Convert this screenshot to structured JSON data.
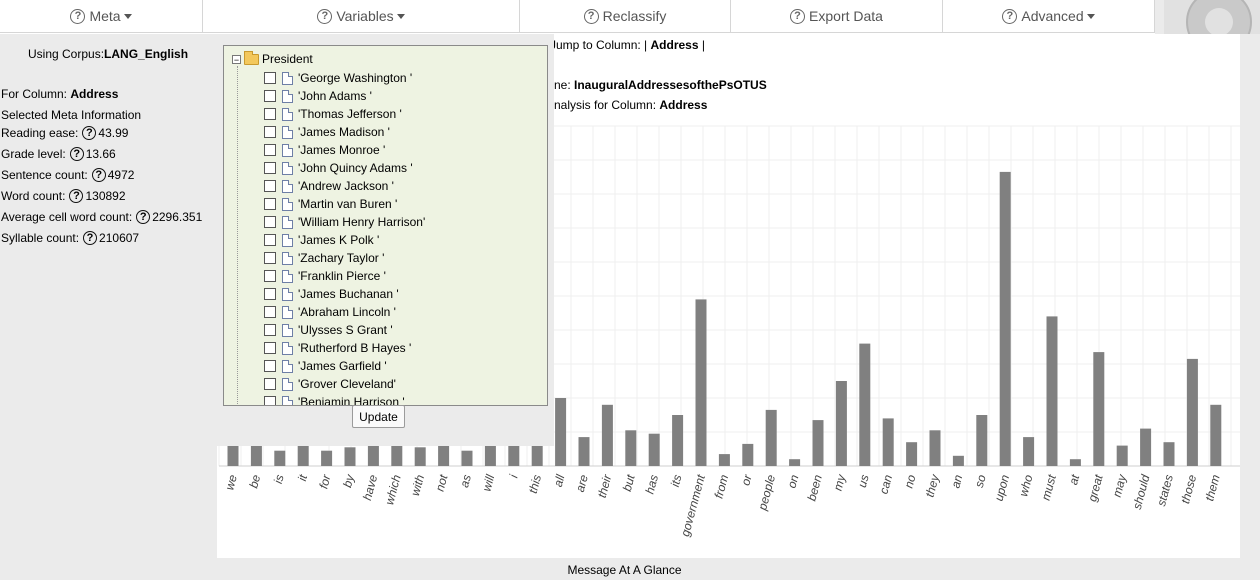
{
  "menu": {
    "items": [
      {
        "label": "Meta",
        "caret": true
      },
      {
        "label": "Variables",
        "caret": true
      },
      {
        "label": "Reclassify",
        "caret": false
      },
      {
        "label": "Export Data",
        "caret": false
      },
      {
        "label": "Advanced",
        "caret": true
      }
    ],
    "icon": "question-circle-icon",
    "logo_icon": "gear-icon"
  },
  "meta": {
    "corpus_label": "Using Corpus:",
    "corpus_value": "LANG_English",
    "column_label": "For Column:",
    "column_value": "Address",
    "selected_meta": "Selected Meta Information",
    "stats": [
      {
        "label": "Reading ease:",
        "value": "43.99"
      },
      {
        "label": "Grade level:",
        "value": "13.66"
      },
      {
        "label": "Sentence count:",
        "value": "4972"
      },
      {
        "label": "Word count:",
        "value": "130892"
      },
      {
        "label": "Average cell word count:",
        "value": "2296.351"
      },
      {
        "label": "Syllable count:",
        "value": "210607"
      }
    ]
  },
  "info": {
    "jump_prefix": "Jump to Column: | ",
    "jump_column": "Address",
    "jump_suffix": " |",
    "name_prefix": "ne: ",
    "name_value": "InauguralAddressesofthePsOTUS",
    "analysis_prefix": "nalysis for Column: ",
    "analysis_value": "Address"
  },
  "tree": {
    "root": "President",
    "items": [
      "'George Washington '",
      "'John Adams '",
      "'Thomas Jefferson '",
      "'James Madison '",
      "'James Monroe '",
      "'John Quincy Adams '",
      "'Andrew Jackson '",
      "'Martin van Buren '",
      "'William Henry Harrison'",
      "'James K Polk '",
      "'Zachary Taylor '",
      "'Franklin Pierce '",
      "'James Buchanan '",
      "'Abraham Lincoln '",
      "'Ulysses S Grant '",
      "'Rutherford B Hayes '",
      "'James Garfield '",
      "'Grover Cleveland'",
      "'Benjamin Harrison '"
    ],
    "update_label": "Update"
  },
  "chart_data": {
    "type": "bar",
    "categories": [
      "we",
      "be",
      "is",
      "it",
      "for",
      "by",
      "have",
      "which",
      "with",
      "not",
      "as",
      "will",
      "i",
      "this",
      "all",
      "are",
      "their",
      "but",
      "has",
      "its",
      "government",
      "from",
      "or",
      "people",
      "on",
      "been",
      "my",
      "us",
      "can",
      "no",
      "they",
      "an",
      "so",
      "upon",
      "who",
      "must",
      "at",
      "great",
      "may",
      "should",
      "states",
      "those",
      "them"
    ],
    "values": [
      16,
      16,
      9,
      16,
      9,
      11,
      16,
      16,
      11,
      16,
      9,
      16,
      16,
      13,
      40,
      17,
      36,
      21,
      19,
      30,
      98,
      7,
      13,
      33,
      4,
      27,
      50,
      72,
      28,
      14,
      21,
      6,
      30,
      173,
      17,
      88,
      4,
      67,
      12,
      22,
      14,
      63,
      36
    ],
    "bar_color": "#808080",
    "grid": true
  },
  "status": {
    "message": "Message At A Glance"
  }
}
